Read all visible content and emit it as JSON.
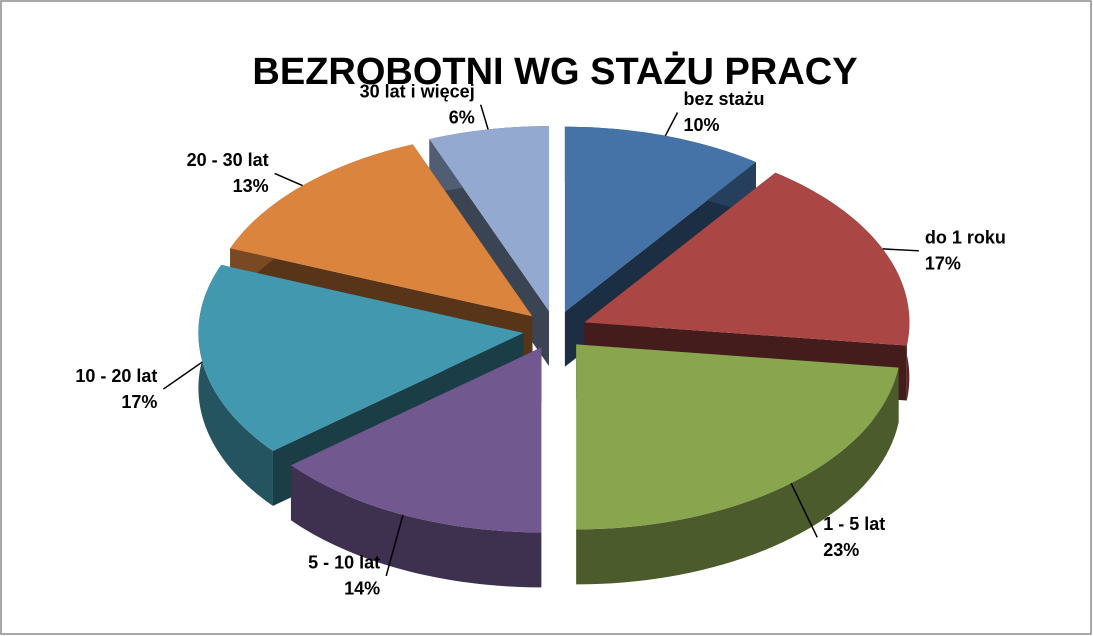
{
  "chart_data": {
    "type": "pie",
    "title": "BEZROBOTNI WG STAŻU PRACY",
    "categories": [
      "bez stażu",
      "do 1 roku",
      "1 - 5 lat",
      "5 - 10 lat",
      "10 - 20 lat",
      "20 - 30 lat",
      "30 lat i więcej"
    ],
    "values": [
      10,
      17,
      23,
      14,
      17,
      13,
      6
    ],
    "value_labels": [
      "10%",
      "17%",
      "23%",
      "14%",
      "17%",
      "13%",
      "6%"
    ],
    "colors": [
      "#4572a7",
      "#aa4643",
      "#89a54e",
      "#71588f",
      "#4198af",
      "#db843d",
      "#93a9cf"
    ]
  }
}
